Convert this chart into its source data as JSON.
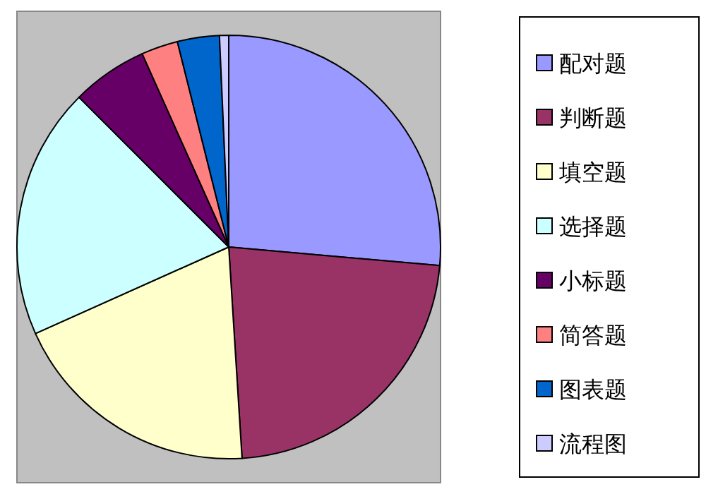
{
  "chart_data": {
    "type": "pie",
    "categories": [
      "配对题",
      "判断题",
      "填空题",
      "选择题",
      "小标题",
      "简答题",
      "图表题",
      "流程图"
    ],
    "values": [
      26.4,
      22.6,
      19.3,
      19.2,
      5.8,
      2.8,
      3.2,
      0.7
    ],
    "colors": [
      "#9999ff",
      "#993366",
      "#ffffcc",
      "#ccffff",
      "#660066",
      "#ff8080",
      "#0066cc",
      "#ccccff"
    ],
    "legend": "right"
  }
}
